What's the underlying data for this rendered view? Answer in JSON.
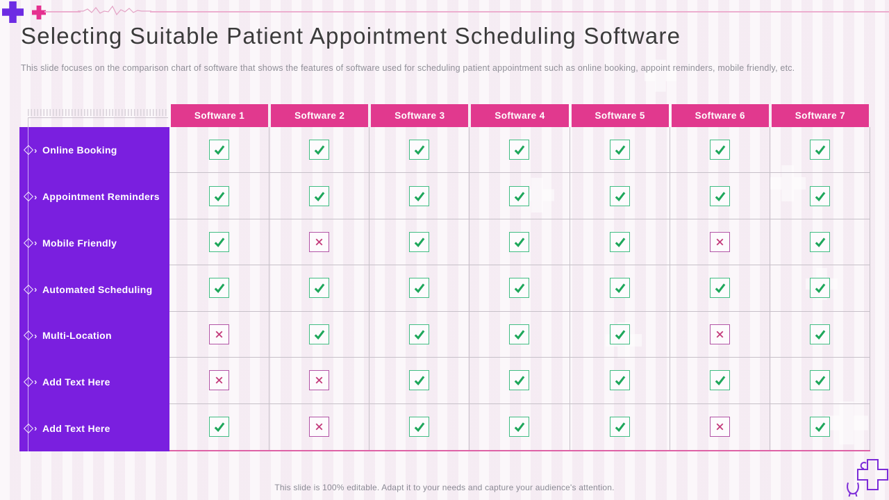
{
  "slide": {
    "title": "Selecting Suitable Patient Appointment Scheduling Software",
    "subtitle": "This slide focuses on the comparison chart of software that shows the features of software used for scheduling patient appointment such as online booking, appoint reminders, mobile friendly, etc.",
    "footer": "This slide is 100% editable. Adapt it to your needs and capture your audience's attention."
  },
  "chart_data": {
    "type": "table",
    "columns": [
      "Software 1",
      "Software 2",
      "Software 3",
      "Software 4",
      "Software 5",
      "Software 6",
      "Software 7"
    ],
    "rows": [
      "Online Booking",
      "Appointment Reminders",
      "Mobile Friendly",
      "Automated Scheduling",
      "Multi-Location",
      "Add Text Here",
      "Add Text Here"
    ],
    "matrix": [
      [
        "check",
        "check",
        "check",
        "check",
        "check",
        "check",
        "check"
      ],
      [
        "check",
        "check",
        "check",
        "check",
        "check",
        "check",
        "check"
      ],
      [
        "check",
        "cross",
        "check",
        "check",
        "check",
        "cross",
        "check"
      ],
      [
        "check",
        "check",
        "check",
        "check",
        "check",
        "check",
        "check"
      ],
      [
        "cross",
        "check",
        "check",
        "check",
        "check",
        "cross",
        "check"
      ],
      [
        "cross",
        "cross",
        "check",
        "check",
        "check",
        "check",
        "check"
      ],
      [
        "check",
        "cross",
        "check",
        "check",
        "check",
        "cross",
        "check"
      ]
    ]
  },
  "icons": {
    "chevron_glyph": "›",
    "top_left": [
      "plus-icon-purple",
      "plus-icon-pink"
    ],
    "row_bullet": "diamond-chevron-icon",
    "cell_true": "check-icon",
    "cell_false": "cross-icon",
    "bottom_right": "medical-cross-stethoscope-icon"
  },
  "colors": {
    "header_pink": "#E1398E",
    "sidebar_purple": "#7A1FDF",
    "check_green": "#1EA75B",
    "check_border": "#41BD83",
    "cross_magenta": "#C43C7C",
    "cross_border": "#B254A6",
    "accent_purple_plus": "#6D2BE3",
    "accent_pink_plus": "#E5308F",
    "table_bottom_pink": "#DE62A6",
    "background": "#F8F0F6"
  }
}
